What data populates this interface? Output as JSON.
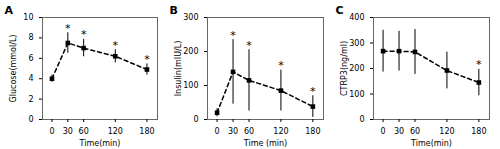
{
  "chart_data": [
    {
      "type": "line",
      "title": "A",
      "x": [
        0,
        30,
        60,
        120,
        180
      ],
      "values": [
        4.0,
        7.5,
        7.0,
        6.2,
        4.9
      ],
      "yerr": [
        0.35,
        1.0,
        0.85,
        0.65,
        0.55
      ],
      "xlabel": "Time(min)",
      "ylabel": "Glucose(mmol/L)",
      "xlim": [
        -18,
        200
      ],
      "xticks": [
        0,
        30,
        60,
        120,
        180
      ],
      "ylim": [
        0,
        10
      ],
      "yticks": [
        0,
        2,
        4,
        6,
        8,
        10
      ],
      "marker": "square",
      "line_style": "dashed",
      "annotations": [
        {
          "x": 30,
          "text": "*"
        },
        {
          "x": 60,
          "text": "*"
        },
        {
          "x": 120,
          "text": "*"
        },
        {
          "x": 180,
          "text": "*"
        }
      ]
    },
    {
      "type": "line",
      "title": "B",
      "x": [
        0,
        30,
        60,
        120,
        180
      ],
      "values": [
        20,
        140,
        115,
        85,
        38
      ],
      "yerr": [
        12,
        95,
        90,
        60,
        32
      ],
      "xlabel": "Time (min)",
      "ylabel": "Insulin(mIU/L)",
      "xlim": [
        -18,
        200
      ],
      "xticks": [
        0,
        30,
        60,
        120,
        180
      ],
      "ylim": [
        0,
        300
      ],
      "yticks": [
        0,
        100,
        200,
        300
      ],
      "marker": "square",
      "line_style": "dashed",
      "annotations": [
        {
          "x": 30,
          "text": "*"
        },
        {
          "x": 60,
          "text": "*"
        },
        {
          "x": 120,
          "text": "*"
        },
        {
          "x": 180,
          "text": "*"
        }
      ]
    },
    {
      "type": "line",
      "title": "C",
      "x": [
        0,
        30,
        60,
        120,
        180
      ],
      "values": [
        268,
        268,
        265,
        192,
        145
      ],
      "yerr": [
        82,
        78,
        88,
        72,
        52
      ],
      "xlabel": "Time(min)",
      "ylabel": "CTRP3(ng/ml)",
      "xlim": [
        -18,
        200
      ],
      "xticks": [
        0,
        30,
        60,
        120,
        180
      ],
      "ylim": [
        0,
        400
      ],
      "yticks": [
        0,
        100,
        200,
        300,
        400
      ],
      "marker": "square",
      "line_style": "dashed",
      "annotations": [
        {
          "x": 180,
          "text": "*"
        }
      ]
    }
  ]
}
